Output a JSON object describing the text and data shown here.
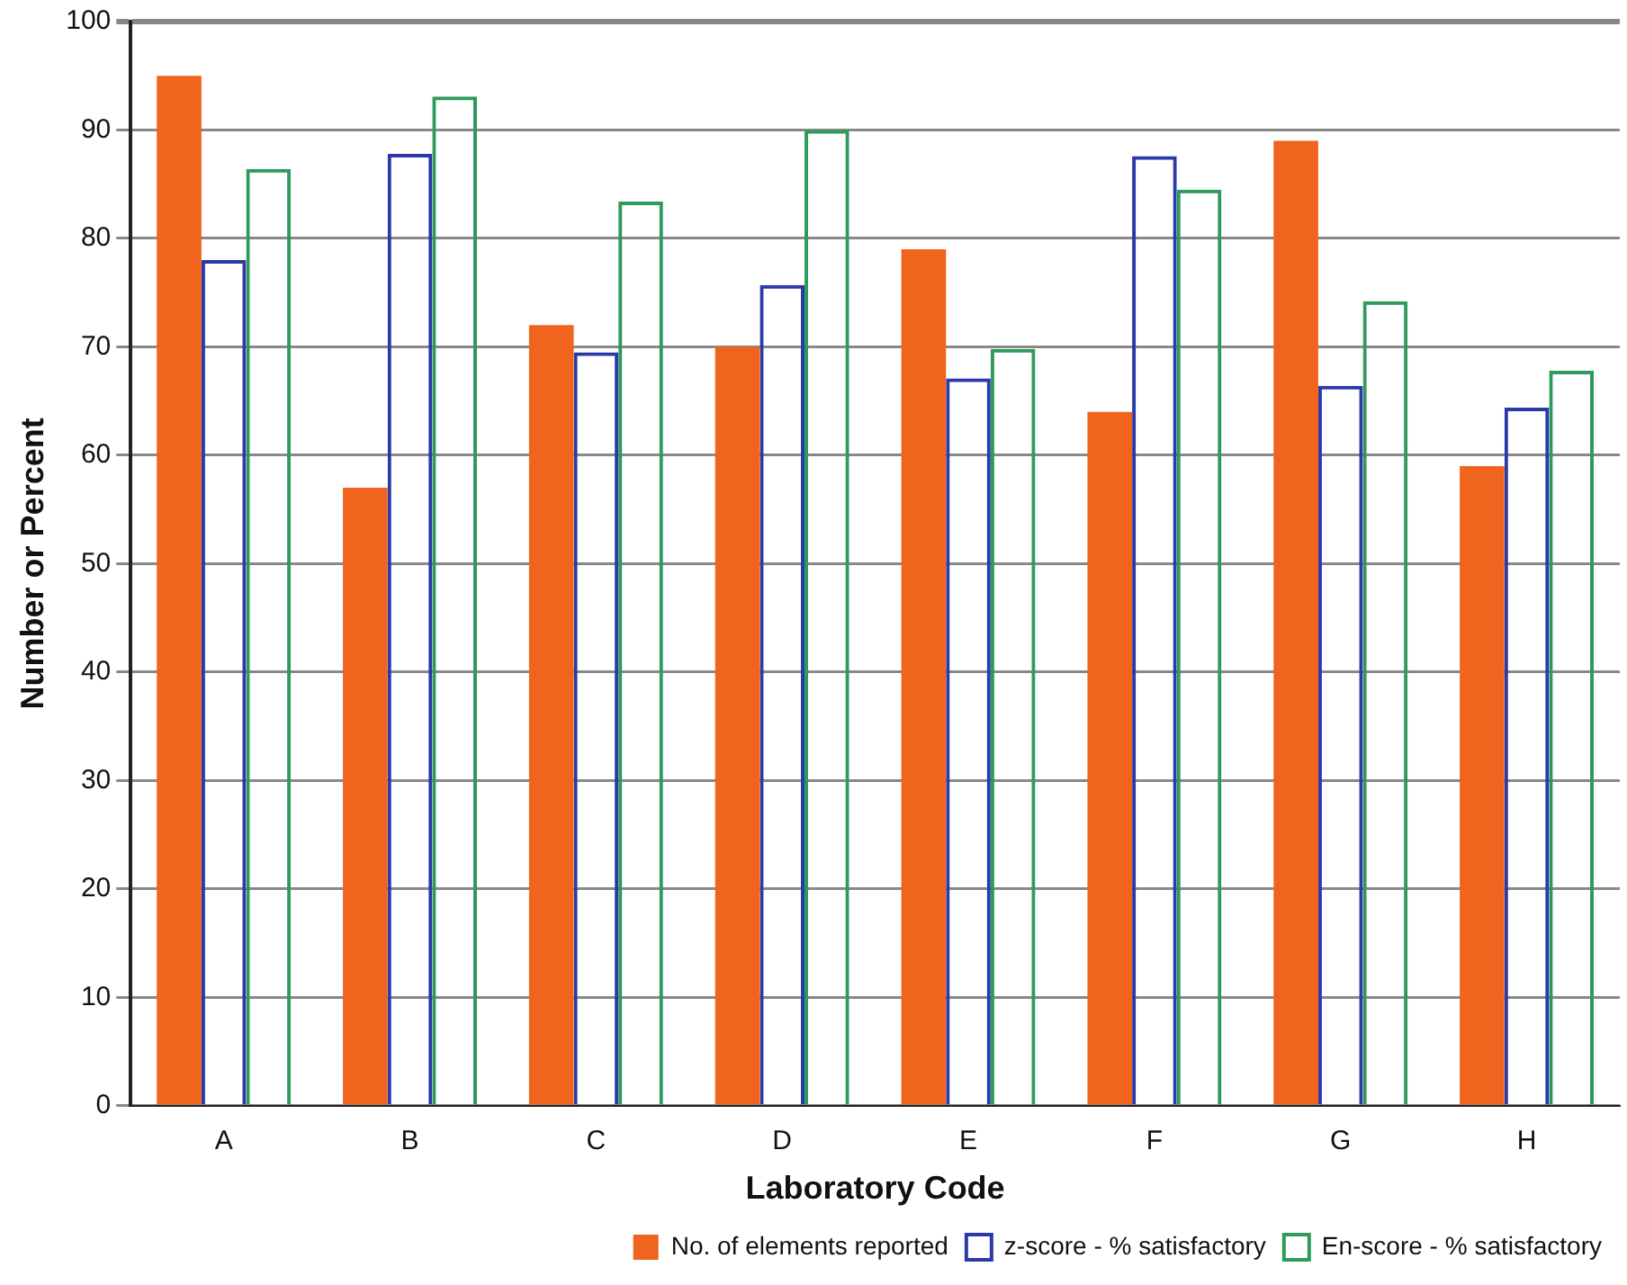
{
  "chart_data": {
    "type": "bar",
    "xlabel": "Laboratory Code",
    "ylabel": "Number or Percent",
    "categories": [
      "A",
      "B",
      "C",
      "D",
      "E",
      "F",
      "G",
      "H"
    ],
    "series": [
      {
        "name": "No. of elements reported",
        "color": "#f0641e",
        "values": [
          95,
          57,
          72,
          70,
          79,
          64,
          89,
          59
        ]
      },
      {
        "name": "z-score - % satisfactory",
        "color": "#2b3aa8",
        "values": [
          78,
          87.8,
          69.5,
          75.7,
          67.1,
          87.6,
          66.4,
          64.4
        ]
      },
      {
        "name": "En-score - % satisfactory",
        "color": "#2e9a5c",
        "values": [
          86.4,
          93.1,
          83.4,
          90,
          69.8,
          84.5,
          74.2,
          67.8
        ]
      }
    ],
    "ylim": [
      0,
      100
    ],
    "yticks": [
      0,
      10,
      20,
      30,
      40,
      50,
      60,
      70,
      80,
      90,
      100
    ],
    "grid": "y",
    "legend": "bottom right"
  }
}
